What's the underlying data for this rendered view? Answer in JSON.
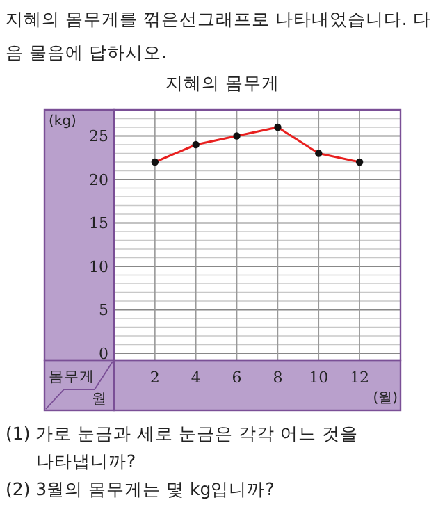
{
  "chart_data": {
    "type": "line",
    "title": "지혜의 몸무게",
    "subtitle": "지혜의 몸무게를 꺾은선그래프로 나타내었습니다. 다음 물음에 답하시오.",
    "xlabel": "(월)",
    "ylabel": "(kg)",
    "x": [
      2,
      4,
      6,
      8,
      10,
      12
    ],
    "series": [
      {
        "color": "#e8201f",
        "values": [
          22,
          24,
          25,
          26,
          23,
          22
        ]
      }
    ],
    "xlim": [
      0,
      14
    ],
    "xticks": [
      2,
      4,
      6,
      8,
      10,
      12
    ],
    "ylim": [
      -0.8,
      28
    ],
    "yticks": [
      0,
      5,
      10,
      15,
      20,
      25
    ],
    "grid": true,
    "marker": "circle",
    "line_style": "solid",
    "annotations": [
      "몸무게",
      "월",
      "(1) 가로 눈금과 세로 눈금은 각각 어느 것을 나타냅니까?",
      "(2) 3월의 몸무게는 몇 kg입니까?"
    ]
  }
}
